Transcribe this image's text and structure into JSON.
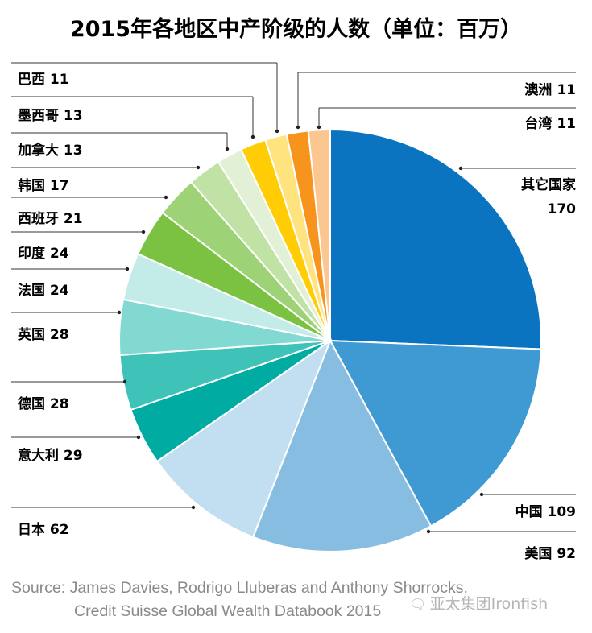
{
  "chart_data": {
    "type": "pie",
    "title": "2015年各地区中产阶级的人数（单位：百万）",
    "slices": [
      {
        "label": "其它国家",
        "value": 170,
        "color": "#0a74c0"
      },
      {
        "label": "中国",
        "value": 109,
        "color": "#3f99d2"
      },
      {
        "label": "美国",
        "value": 92,
        "color": "#86bde1"
      },
      {
        "label": "日本",
        "value": 62,
        "color": "#c1dff0"
      },
      {
        "label": "意大利",
        "value": 29,
        "color": "#00aba2"
      },
      {
        "label": "德国",
        "value": 28,
        "color": "#3fc2b8"
      },
      {
        "label": "英国",
        "value": 28,
        "color": "#82d9d2"
      },
      {
        "label": "法国",
        "value": 24,
        "color": "#c3ece8"
      },
      {
        "label": "印度",
        "value": 24,
        "color": "#7cc242"
      },
      {
        "label": "西班牙",
        "value": 21,
        "color": "#9dd276"
      },
      {
        "label": "韩国",
        "value": 17,
        "color": "#c1e2a5"
      },
      {
        "label": "加拿大",
        "value": 13,
        "color": "#e2f1d5"
      },
      {
        "label": "墨西哥",
        "value": 13,
        "color": "#ffcc06"
      },
      {
        "label": "巴西",
        "value": 11,
        "color": "#ffe37e"
      },
      {
        "label": "澳洲",
        "value": 11,
        "color": "#f7941d"
      },
      {
        "label": "台湾",
        "value": 11,
        "color": "#fbc690"
      }
    ]
  },
  "source": {
    "line1": "Source: James Davies, Rodrigo Lluberas and Anthony Shorrocks,",
    "line2": "Credit Suisse Global Wealth Databook 2015"
  },
  "watermark": {
    "icon": "wechat-icon",
    "text": "亚太集团Ironfish"
  }
}
